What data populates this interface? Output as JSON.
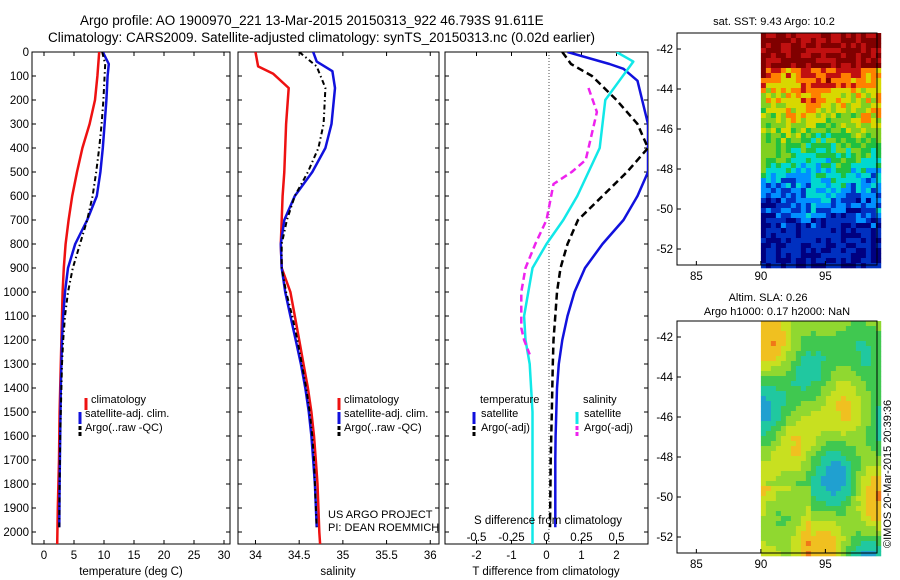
{
  "header": {
    "line1": "Argo profile: AO 1900970_221 13-Mar-2015 20150313_922 46.793S 91.611E",
    "line2": "Climatology: CARS2009. Satellite-adjusted climatology: synTS_20150313.nc (0.02d earlier)"
  },
  "project": {
    "line1": "US ARGO PROJECT",
    "line2": "PI: DEAN ROEMMICH"
  },
  "credit": "©IMOS 20-Mar-2015 20:39:36",
  "colors": {
    "red": "#ee1111",
    "blue": "#1111dd",
    "black": "#000000",
    "cyan": "#11e8e8",
    "magenta": "#ee22ee"
  },
  "chart_data": [
    {
      "type": "line",
      "panel": "temperature",
      "xlabel": "temperature (deg C)",
      "ylabel": "",
      "xlim": [
        -2,
        31
      ],
      "ylim": [
        2050,
        0
      ],
      "xticks": [
        "0",
        "5",
        "10",
        "15",
        "20",
        "25",
        "30"
      ],
      "xtick_values": [
        0,
        5,
        10,
        15,
        20,
        25,
        30
      ],
      "yticks": [
        "0",
        "100",
        "200",
        "300",
        "400",
        "500",
        "600",
        "700",
        "800",
        "900",
        "1000",
        "1100",
        "1200",
        "1300",
        "1400",
        "1500",
        "1600",
        "1700",
        "1800",
        "1900",
        "2000"
      ],
      "ytick_values": [
        0,
        100,
        200,
        300,
        400,
        500,
        600,
        700,
        800,
        900,
        1000,
        1100,
        1200,
        1300,
        1400,
        1500,
        1600,
        1700,
        1800,
        1900,
        2000
      ],
      "legend": [
        "climatology",
        "satellite-adj. clim.",
        "Argo(..raw -QC)"
      ],
      "series": [
        {
          "name": "climatology",
          "color": "#ee1111",
          "style": "solid",
          "width": 2.5,
          "x": [
            9.2,
            8.9,
            8.5,
            7.6,
            6.4,
            5.5,
            4.7,
            4.1,
            3.6,
            3.3,
            3.1,
            3.0,
            2.9,
            2.8,
            2.7,
            2.6,
            2.55,
            2.5,
            2.4,
            2.3,
            2.2
          ],
          "y": [
            0,
            100,
            200,
            300,
            400,
            500,
            600,
            700,
            800,
            900,
            1000,
            1100,
            1200,
            1300,
            1400,
            1500,
            1600,
            1700,
            1800,
            1900,
            2050
          ]
        },
        {
          "name": "satellite-adj. clim.",
          "color": "#1111dd",
          "style": "solid",
          "width": 2.5,
          "x": [
            9.8,
            10.8,
            10.6,
            10.4,
            10.1,
            9.8,
            9.4,
            8.8,
            7.2,
            5.2,
            4.0,
            3.5,
            3.2,
            3.0,
            2.9,
            2.8,
            2.75,
            2.7,
            2.65,
            2.6,
            2.55
          ],
          "y": [
            0,
            50,
            100,
            200,
            300,
            400,
            500,
            600,
            700,
            800,
            900,
            1000,
            1100,
            1200,
            1300,
            1400,
            1500,
            1600,
            1700,
            1800,
            1980
          ]
        },
        {
          "name": "Argo(..raw -QC)",
          "color": "#000000",
          "style": "dashdot",
          "width": 2,
          "x": [
            9.7,
            10.2,
            10.1,
            9.9,
            9.6,
            9.2,
            8.7,
            8.1,
            7.2,
            6.0,
            4.8,
            4.0,
            3.5,
            3.2,
            3.0,
            2.9,
            2.8,
            2.7,
            2.65,
            2.6,
            2.55
          ],
          "y": [
            0,
            50,
            100,
            200,
            300,
            400,
            500,
            600,
            700,
            800,
            900,
            1000,
            1100,
            1200,
            1300,
            1400,
            1500,
            1600,
            1700,
            1800,
            1980
          ]
        }
      ]
    },
    {
      "type": "line",
      "panel": "salinity",
      "xlabel": "salinity",
      "ylabel": "",
      "xlim": [
        33.8,
        36.1
      ],
      "ylim": [
        2050,
        0
      ],
      "xticks": [
        "34",
        "34.5",
        "35",
        "35.5",
        "36"
      ],
      "xtick_values": [
        34,
        34.5,
        35,
        35.5,
        36
      ],
      "legend": [
        "climatology",
        "satellite-adj. clim.",
        "Argo(..raw -QC)"
      ],
      "series": [
        {
          "name": "climatology",
          "color": "#ee1111",
          "style": "solid",
          "width": 2.5,
          "x": [
            34.0,
            34.03,
            34.2,
            34.38,
            34.35,
            34.33,
            34.31,
            34.3,
            34.29,
            34.3,
            34.4,
            34.45,
            34.5,
            34.55,
            34.6,
            34.64,
            34.67,
            34.69,
            34.71,
            34.72,
            34.73,
            34.74
          ],
          "y": [
            0,
            60,
            90,
            150,
            300,
            500,
            600,
            700,
            800,
            900,
            1000,
            1100,
            1200,
            1300,
            1400,
            1500,
            1600,
            1700,
            1800,
            1900,
            2000,
            2050
          ]
        },
        {
          "name": "satellite-adj. clim.",
          "color": "#1111dd",
          "style": "solid",
          "width": 2.5,
          "x": [
            34.66,
            34.7,
            34.88,
            34.91,
            34.87,
            34.8,
            34.65,
            34.45,
            34.33,
            34.29,
            34.3,
            34.34,
            34.4,
            34.46,
            34.52,
            34.57,
            34.61,
            34.64,
            34.66,
            34.68,
            34.7
          ],
          "y": [
            0,
            40,
            80,
            150,
            300,
            400,
            500,
            600,
            700,
            800,
            900,
            1000,
            1100,
            1200,
            1300,
            1400,
            1500,
            1600,
            1700,
            1800,
            1980
          ]
        },
        {
          "name": "Argo(..raw -QC)",
          "color": "#000000",
          "style": "dashdot",
          "width": 2,
          "x": [
            34.5,
            34.7,
            34.8,
            34.78,
            34.72,
            34.6,
            34.45,
            34.36,
            34.3,
            34.3,
            34.35,
            34.42,
            34.48,
            34.53,
            34.58,
            34.62,
            34.65,
            34.67,
            34.68,
            34.7
          ],
          "y": [
            0,
            60,
            150,
            300,
            400,
            500,
            600,
            700,
            800,
            900,
            1000,
            1100,
            1200,
            1300,
            1400,
            1500,
            1600,
            1700,
            1800,
            1980
          ]
        }
      ]
    },
    {
      "type": "line",
      "panel": "difference",
      "xlabel": "T difference from climatology",
      "xlabel2": "S difference from climatology",
      "xlim": [
        -2.9,
        2.9
      ],
      "ylim": [
        2050,
        0
      ],
      "xticks": [
        "-2",
        "-1",
        "0",
        "1",
        "2"
      ],
      "xtick_values": [
        -2,
        -1,
        0,
        1,
        2
      ],
      "xticks2": [
        "-0.5",
        "-0.25",
        "0",
        "0.25",
        "0.5"
      ],
      "xtick2_values": [
        -0.5,
        -0.25,
        0,
        0.25,
        0.5
      ],
      "legend_titles": [
        "temperature",
        "salinity"
      ],
      "legend": [
        "satellite",
        "Argo(-adj)",
        "satellite",
        "Argo(-adj)"
      ],
      "series": [
        {
          "name": "satellite",
          "group": "temperature",
          "color": "#1111dd",
          "style": "solid",
          "width": 2.5,
          "x": [
            0.6,
            1.8,
            2.2,
            2.6,
            2.9,
            2.9,
            2.6,
            2.2,
            1.6,
            1.1,
            0.8,
            0.6,
            0.45,
            0.35,
            0.3,
            0.28,
            0.26,
            0.25,
            0.25,
            0.25
          ],
          "y": [
            0,
            50,
            70,
            120,
            300,
            500,
            600,
            700,
            800,
            900,
            1000,
            1100,
            1200,
            1300,
            1400,
            1500,
            1600,
            1700,
            1800,
            1980
          ]
        },
        {
          "name": "Argo(-adj)",
          "group": "temperature",
          "color": "#000000",
          "style": "dashed",
          "width": 2.5,
          "x": [
            0.45,
            0.7,
            1.3,
            2.0,
            2.6,
            2.9,
            2.3,
            1.6,
            0.9,
            0.6,
            0.4,
            0.3,
            0.25,
            0.2,
            0.18,
            0.15,
            0.12,
            0.1
          ],
          "y": [
            0,
            50,
            100,
            200,
            300,
            400,
            500,
            600,
            700,
            800,
            900,
            1000,
            1100,
            1200,
            1300,
            1500,
            1700,
            1980
          ]
        },
        {
          "name": "satellite",
          "group": "salinity",
          "color": "#11e8e8",
          "style": "solid",
          "width": 2.5,
          "x": [
            0.5,
            0.62,
            0.52,
            0.42,
            0.4,
            0.38,
            0.3,
            0.22,
            0.12,
            0.0,
            -0.1,
            -0.13,
            -0.16,
            -0.15,
            -0.12,
            -0.11,
            -0.1,
            -0.1,
            -0.1,
            -0.1,
            -0.1
          ],
          "y": [
            0,
            40,
            120,
            200,
            300,
            400,
            500,
            600,
            700,
            800,
            900,
            1000,
            1100,
            1200,
            1300,
            1400,
            1500,
            1600,
            1700,
            1800,
            2050
          ]
        },
        {
          "name": "Argo(-adj)",
          "group": "salinity",
          "color": "#ee22ee",
          "style": "dashed",
          "width": 2.5,
          "x": [
            0.3,
            0.36,
            0.32,
            0.28,
            0.18,
            0.05,
            0.0,
            -0.08,
            -0.15,
            -0.18,
            -0.18,
            -0.16,
            -0.12
          ],
          "y": [
            150,
            250,
            350,
            450,
            500,
            550,
            700,
            800,
            900,
            1000,
            1150,
            1200,
            1260
          ]
        }
      ]
    },
    {
      "type": "heatmap",
      "panel": "satellite SST",
      "title": "sat. SST: 9.43 Argo: 10.2",
      "xlim": [
        83.5,
        99
      ],
      "ylim": [
        -52.8,
        -41.2
      ],
      "xticks": [
        "85",
        "90",
        "95"
      ],
      "xtick_values": [
        85,
        90,
        95
      ],
      "yticks": [
        "-42",
        "-44",
        "-46",
        "-48",
        "-50",
        "-52"
      ],
      "ytick_values": [
        -42,
        -44,
        -46,
        -48,
        -50,
        -52
      ],
      "data_x_range": [
        90,
        99
      ],
      "colormap": [
        "#000080",
        "#0030c0",
        "#0090ff",
        "#00d8d0",
        "#20c040",
        "#80d020",
        "#d8d800",
        "#ff8000",
        "#c01010",
        "#800000"
      ]
    },
    {
      "type": "heatmap",
      "panel": "altimetry SLA",
      "title": "Altim. SLA: 0.26",
      "subtitle": "Argo h1000: 0.17 h2000: NaN",
      "xlim": [
        83.5,
        99
      ],
      "ylim": [
        -52.8,
        -41.2
      ],
      "xticks": [
        "85",
        "90",
        "95"
      ],
      "xtick_values": [
        85,
        90,
        95
      ],
      "yticks": [
        "-42",
        "-44",
        "-46",
        "-48",
        "-50",
        "-52"
      ],
      "ytick_values": [
        -42,
        -44,
        -46,
        -48,
        -50,
        -52
      ],
      "data_x_range": [
        90,
        99
      ],
      "colormap": [
        "#20a0d0",
        "#20c8a0",
        "#40c850",
        "#90d830",
        "#c8e020",
        "#f0c020",
        "#f07818"
      ]
    }
  ]
}
